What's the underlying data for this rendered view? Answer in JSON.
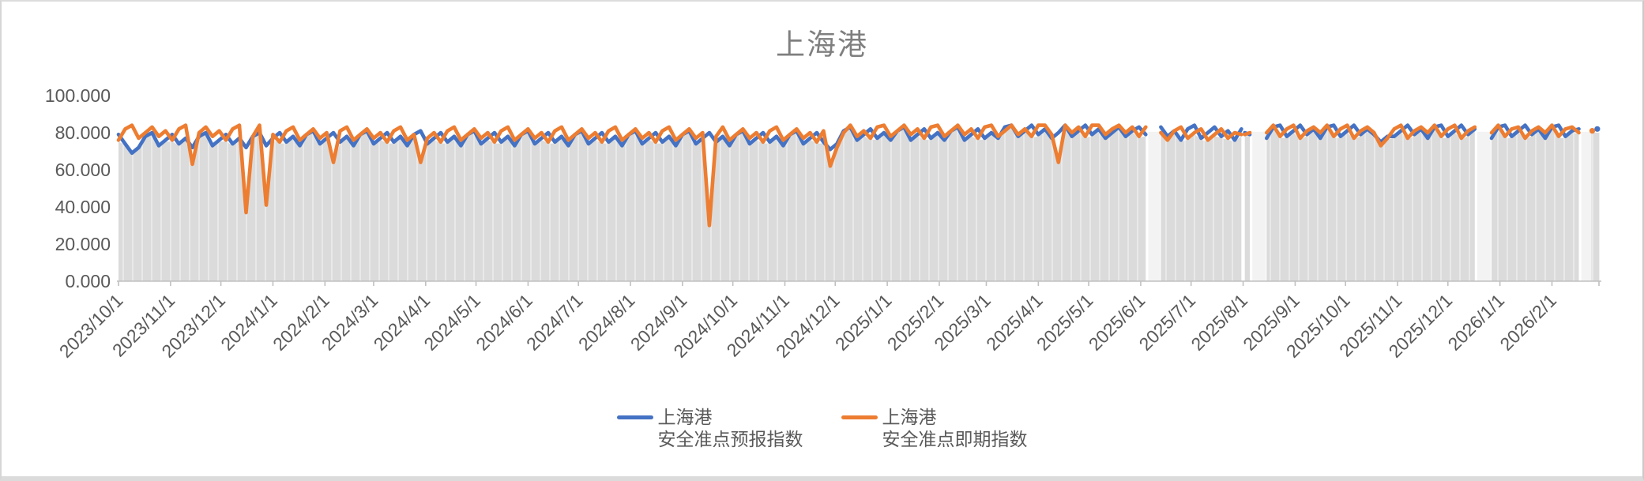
{
  "title": "上海港",
  "legend": [
    {
      "line1": "上海港",
      "line2": "安全准点预报指数",
      "color": "#4472C4"
    },
    {
      "line1": "上海港",
      "line2": "安全准点即期指数",
      "color": "#ED7D31"
    }
  ],
  "colors": {
    "forecast_line": "#4472C4",
    "spot_line": "#ED7D31",
    "area_fill": "#DBDBDB",
    "area_stripe": "#E9E9E9",
    "gap_fill": "#F3F3F3",
    "axis": "#C0C0C0",
    "axis_label": "#595959",
    "title": "#7F7F7F"
  },
  "chart_data": {
    "type": "line",
    "title": "上海港",
    "legend_position": "bottom",
    "grid": "none; gray striped area fill under the lines; lighter columns mark data gaps",
    "y_axis": {
      "min": 0,
      "max": 100,
      "tick_step": 20,
      "tick_labels": [
        "0.000",
        "20.000",
        "40.000",
        "60.000",
        "80.000",
        "100.000"
      ]
    },
    "x_axis": {
      "unit": "daily dates, day 0 = 2023/10/1",
      "day_max": 882,
      "tick_labels": [
        {
          "label": "2023/10/1",
          "day": 0
        },
        {
          "label": "2023/11/1",
          "day": 31
        },
        {
          "label": "2023/12/1",
          "day": 61
        },
        {
          "label": "2024/1/1",
          "day": 92
        },
        {
          "label": "2024/2/1",
          "day": 123
        },
        {
          "label": "2024/3/1",
          "day": 152
        },
        {
          "label": "2024/4/1",
          "day": 183
        },
        {
          "label": "2024/5/1",
          "day": 213
        },
        {
          "label": "2024/6/1",
          "day": 244
        },
        {
          "label": "2024/7/1",
          "day": 274
        },
        {
          "label": "2024/8/1",
          "day": 305
        },
        {
          "label": "2024/9/1",
          "day": 336
        },
        {
          "label": "2024/10/1",
          "day": 366
        },
        {
          "label": "2024/11/1",
          "day": 397
        },
        {
          "label": "2024/12/1",
          "day": 427
        },
        {
          "label": "2025/1/1",
          "day": 458
        },
        {
          "label": "2025/2/1",
          "day": 489
        },
        {
          "label": "2025/3/1",
          "day": 517
        },
        {
          "label": "2025/4/1",
          "day": 548
        },
        {
          "label": "2025/5/1",
          "day": 578
        },
        {
          "label": "2025/6/1",
          "day": 609
        },
        {
          "label": "2025/7/1",
          "day": 639
        },
        {
          "label": "2025/8/1",
          "day": 670
        },
        {
          "label": "2025/9/1",
          "day": 701
        },
        {
          "label": "2025/10/1",
          "day": 731
        },
        {
          "label": "2025/11/1",
          "day": 762
        },
        {
          "label": "2025/12/1",
          "day": 792
        },
        {
          "label": "2026/1/1",
          "day": 823
        },
        {
          "label": "2026/2/1",
          "day": 854
        }
      ]
    },
    "gaps_days": [
      [
        614,
        620
      ],
      [
        676,
        683
      ],
      [
        810,
        817
      ],
      [
        872,
        877
      ]
    ],
    "series": [
      {
        "name": "上海港 安全准点预报指数",
        "color": "#4472C4",
        "segments": [
          {
            "start_day": 0,
            "step": 4,
            "values": [
              79,
              74,
              69,
              72,
              78,
              80,
              73,
              76,
              79,
              74,
              77,
              72,
              78,
              80,
              73,
              76,
              79,
              74,
              77,
              72,
              78,
              80,
              73,
              77,
              80,
              75,
              78,
              73,
              79,
              81,
              74,
              77,
              80,
              75,
              78,
              73,
              79,
              81,
              74,
              77,
              80,
              75,
              78,
              73,
              79,
              81,
              74,
              77,
              80,
              75,
              78,
              73,
              79,
              81,
              74,
              77,
              80,
              75,
              78,
              73,
              79,
              81,
              74,
              77,
              80,
              75,
              78,
              73,
              79,
              81,
              74,
              77,
              80,
              75,
              78,
              73,
              79,
              81,
              74,
              77,
              80,
              75,
              78,
              73,
              79,
              81,
              74,
              77,
              80,
              75,
              78,
              73,
              79,
              81,
              74,
              77,
              80,
              75,
              78,
              73,
              79,
              81,
              74,
              77,
              80,
              75,
              71,
              74,
              81,
              83,
              76,
              79,
              82,
              77,
              80,
              76,
              81,
              83,
              76,
              79,
              82,
              77,
              80,
              76,
              81,
              83,
              76,
              79,
              82,
              77,
              80,
              77,
              83,
              84,
              78,
              81,
              84,
              79,
              82,
              77,
              80,
              84,
              78,
              81,
              84,
              79,
              82,
              77,
              80,
              83,
              78,
              81,
              83,
              79
            ]
          },
          {
            "start_day": 621,
            "step": 4,
            "values": [
              83,
              78,
              81,
              76,
              82,
              84,
              77,
              80,
              83,
              78,
              81,
              76,
              82
            ]
          },
          {
            "start_day": 671,
            "step": 3,
            "values": [
              80,
              79
            ]
          },
          {
            "start_day": 684,
            "step": 4,
            "values": [
              77,
              83,
              84,
              78,
              81,
              84,
              79,
              82,
              77,
              83,
              84,
              78,
              81,
              84,
              79,
              82,
              79,
              75,
              78,
              78,
              81,
              84,
              79,
              82,
              77,
              83,
              84,
              78,
              81,
              84,
              79,
              82
            ]
          },
          {
            "start_day": 818,
            "step": 4,
            "values": [
              77,
              83,
              84,
              78,
              81,
              84,
              79,
              82,
              77,
              83,
              84,
              78,
              81,
              82
            ]
          },
          {
            "start_day": 881,
            "step": 4,
            "values": [
              82
            ]
          }
        ]
      },
      {
        "name": "上海港 安全准点即期指数",
        "color": "#ED7D31",
        "segments": [
          {
            "start_day": 0,
            "step": 4,
            "values": [
              76,
              82,
              84,
              77,
              80,
              83,
              78,
              81,
              76,
              82,
              84,
              63,
              80,
              83,
              78,
              81,
              76,
              82,
              84,
              37,
              78,
              84,
              41,
              79,
              75,
              81,
              83,
              76,
              79,
              82,
              77,
              80,
              64,
              81,
              83,
              76,
              79,
              82,
              77,
              80,
              75,
              81,
              83,
              76,
              79,
              64,
              77,
              80,
              75,
              81,
              83,
              76,
              79,
              82,
              77,
              80,
              75,
              81,
              83,
              76,
              79,
              82,
              77,
              80,
              75,
              81,
              83,
              76,
              79,
              82,
              77,
              80,
              75,
              81,
              83,
              76,
              79,
              82,
              77,
              80,
              75,
              81,
              83,
              76,
              79,
              82,
              77,
              80,
              30,
              78,
              83,
              76,
              79,
              82,
              77,
              80,
              75,
              81,
              83,
              76,
              79,
              82,
              77,
              80,
              75,
              81,
              62,
              72,
              80,
              84,
              78,
              81,
              77,
              83,
              84,
              78,
              81,
              84,
              79,
              82,
              77,
              83,
              84,
              78,
              81,
              84,
              79,
              82,
              77,
              83,
              84,
              78,
              81,
              84,
              79,
              82,
              78,
              84,
              84,
              79,
              64,
              84,
              80,
              83,
              78,
              84,
              84,
              79,
              82,
              84,
              80,
              83,
              78,
              83
            ]
          },
          {
            "start_day": 621,
            "step": 4,
            "values": [
              80,
              76,
              81,
              83,
              77,
              80,
              82,
              76,
              79,
              82,
              77,
              80,
              79
            ]
          },
          {
            "start_day": 671,
            "step": 3,
            "values": [
              79,
              80
            ]
          },
          {
            "start_day": 684,
            "step": 4,
            "values": [
              80,
              84,
              78,
              82,
              84,
              77,
              81,
              83,
              80,
              84,
              78,
              82,
              84,
              77,
              81,
              83,
              80,
              73,
              77,
              82,
              84,
              77,
              81,
              83,
              80,
              84,
              78,
              82,
              84,
              77,
              81,
              83
            ]
          },
          {
            "start_day": 818,
            "step": 4,
            "values": [
              80,
              84,
              78,
              82,
              83,
              77,
              81,
              83,
              80,
              84,
              78,
              82,
              83,
              80
            ]
          },
          {
            "start_day": 878,
            "step": 4,
            "values": [
              81
            ]
          }
        ]
      }
    ]
  }
}
